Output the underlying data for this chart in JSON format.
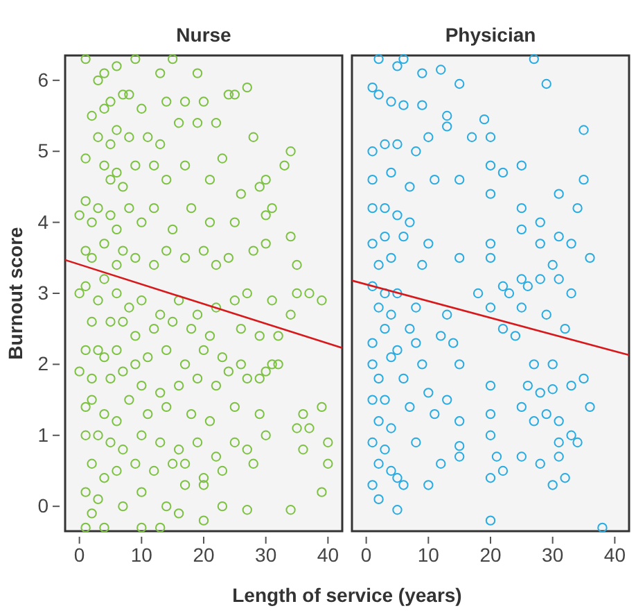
{
  "chart_data": [
    {
      "type": "scatter",
      "title": "Nurse",
      "ylabel": "Burnout score",
      "xlabel": "Length of service (years)",
      "xlim": [
        -2.3,
        42.3
      ],
      "ylim": [
        -0.35,
        6.35
      ],
      "xticks": [
        0,
        10,
        20,
        30,
        40
      ],
      "yticks": [
        0,
        1,
        2,
        3,
        4,
        5,
        6
      ],
      "grid": false,
      "series": [
        {
          "marker": "circle",
          "color": "#7dc142",
          "x": [
            1,
            3,
            4,
            6,
            9,
            13,
            15,
            19,
            2,
            4,
            5,
            7,
            8,
            10,
            14,
            17,
            20,
            24,
            25,
            27,
            3,
            5,
            6,
            8,
            11,
            13,
            16,
            19,
            22,
            28,
            34,
            33,
            1,
            4,
            5,
            6,
            7,
            9,
            12,
            14,
            17,
            21,
            23,
            26,
            29,
            30,
            0,
            1,
            2,
            3,
            5,
            6,
            8,
            10,
            12,
            15,
            18,
            21,
            25,
            30,
            31,
            34,
            1,
            2,
            4,
            6,
            7,
            9,
            12,
            14,
            17,
            20,
            22,
            24,
            28,
            30,
            35,
            0,
            1,
            3,
            4,
            6,
            8,
            10,
            13,
            16,
            19,
            22,
            25,
            27,
            31,
            35,
            37,
            39,
            34,
            2,
            5,
            7,
            9,
            12,
            15,
            18,
            21,
            26,
            29,
            32,
            1,
            3,
            4,
            6,
            9,
            11,
            14,
            17,
            20,
            23,
            26,
            29,
            31,
            0,
            2,
            5,
            7,
            10,
            13,
            16,
            19,
            22,
            24,
            27,
            30,
            32,
            1,
            2,
            4,
            6,
            8,
            11,
            14,
            18,
            21,
            25,
            29,
            36,
            39,
            1,
            3,
            5,
            7,
            10,
            13,
            16,
            19,
            22,
            25,
            27,
            30,
            35,
            37,
            40,
            36,
            2,
            4,
            6,
            9,
            12,
            15,
            17,
            20,
            23,
            28,
            40,
            1,
            3,
            7,
            10,
            14,
            17,
            20,
            23,
            27,
            34,
            39,
            2,
            1,
            4,
            13,
            16,
            20,
            10
          ],
          "values": [
            6.3,
            6.0,
            6.1,
            6.2,
            6.3,
            6.1,
            6.3,
            6.1,
            5.5,
            5.6,
            5.7,
            5.8,
            5.8,
            5.6,
            5.7,
            5.7,
            5.7,
            5.8,
            5.8,
            5.9,
            5.2,
            5.1,
            5.3,
            5.2,
            5.2,
            5.1,
            5.4,
            5.4,
            5.4,
            5.2,
            5.0,
            4.8,
            4.9,
            4.8,
            4.6,
            4.7,
            4.5,
            4.8,
            4.8,
            4.6,
            4.8,
            4.6,
            4.9,
            4.4,
            4.5,
            4.6,
            4.1,
            4.3,
            4.0,
            4.2,
            4.1,
            3.9,
            4.2,
            4.0,
            4.2,
            3.9,
            4.2,
            4.0,
            4.0,
            4.1,
            4.2,
            3.8,
            3.6,
            3.5,
            3.7,
            3.4,
            3.6,
            3.5,
            3.4,
            3.6,
            3.5,
            3.6,
            3.4,
            3.5,
            3.6,
            3.7,
            3.4,
            3.0,
            3.1,
            2.9,
            3.2,
            3.0,
            2.8,
            2.9,
            2.7,
            2.9,
            2.7,
            2.8,
            2.9,
            3.0,
            2.9,
            3.0,
            3.0,
            2.9,
            2.7,
            2.6,
            2.6,
            2.6,
            2.4,
            2.5,
            2.6,
            2.5,
            2.4,
            2.5,
            2.4,
            2.4,
            2.2,
            2.2,
            2.1,
            2.2,
            2.0,
            2.1,
            2.2,
            2.0,
            2.2,
            2.1,
            2.0,
            1.8,
            2.0,
            1.9,
            1.8,
            1.8,
            1.9,
            1.7,
            1.6,
            1.7,
            1.8,
            1.7,
            1.9,
            1.8,
            1.9,
            2.0,
            1.4,
            1.5,
            1.3,
            1.2,
            1.5,
            1.3,
            1.4,
            1.3,
            1.2,
            1.4,
            1.3,
            1.3,
            1.4,
            1.0,
            1.0,
            0.9,
            0.8,
            1.0,
            0.9,
            0.8,
            0.9,
            0.7,
            0.9,
            0.8,
            1.0,
            1.1,
            1.1,
            0.9,
            0.8,
            0.6,
            0.4,
            0.5,
            0.6,
            0.5,
            0.6,
            0.6,
            0.4,
            0.5,
            0.6,
            0.6,
            0.2,
            0.1,
            0.0,
            0.2,
            0.0,
            0.3,
            0.3,
            0.0,
            -0.05,
            -0.05,
            0.2,
            -0.1,
            -0.3,
            -0.3,
            -0.3,
            -0.1,
            -0.2,
            -0.3
          ]
        },
        {
          "type": "line",
          "color": "#d7191c",
          "x": [
            -2.3,
            42.3
          ],
          "values": [
            3.47,
            2.23
          ]
        }
      ]
    },
    {
      "type": "scatter",
      "title": "Physician",
      "xlim": [
        -2.3,
        42.3
      ],
      "ylim": [
        -0.35,
        6.35
      ],
      "xticks": [
        0,
        10,
        20,
        30,
        40
      ],
      "yticks": [
        0,
        1,
        2,
        3,
        4,
        5,
        6
      ],
      "tick_labels": "x",
      "grid": false,
      "series": [
        {
          "marker": "circle",
          "color": "#29abe2",
          "x": [
            2,
            6,
            5,
            9,
            12,
            15,
            27,
            29,
            1,
            2,
            4,
            6,
            9,
            13,
            19,
            13,
            35,
            17,
            20,
            1,
            3,
            5,
            8,
            10,
            20,
            22,
            25,
            1,
            4,
            7,
            11,
            15,
            35,
            20,
            31,
            34,
            1,
            3,
            5,
            7,
            25,
            28,
            25,
            33,
            1,
            3,
            6,
            10,
            20,
            28,
            31,
            36,
            2,
            4,
            9,
            15,
            20,
            30,
            22,
            25,
            26,
            28,
            31,
            1,
            3,
            5,
            18,
            23,
            33,
            8,
            2,
            4,
            20,
            25,
            29,
            3,
            13,
            12,
            7,
            22,
            32,
            1,
            5,
            8,
            14,
            24,
            1,
            4,
            9,
            15,
            27,
            30,
            35,
            20,
            2,
            6,
            10,
            26,
            28,
            30,
            33,
            1,
            3,
            7,
            13,
            20,
            25,
            29,
            36,
            31,
            2,
            4,
            11,
            15,
            27,
            33,
            1,
            3,
            8,
            15,
            20,
            31,
            34,
            2,
            4,
            12,
            15,
            21,
            25,
            28,
            31,
            5,
            20,
            22,
            32,
            1,
            6,
            10,
            30,
            2,
            5,
            20,
            38
          ],
          "values": [
            6.3,
            6.3,
            6.2,
            6.1,
            6.15,
            5.95,
            6.3,
            5.95,
            5.9,
            5.8,
            5.7,
            5.65,
            5.65,
            5.5,
            5.45,
            5.35,
            5.3,
            5.2,
            5.2,
            5.0,
            5.1,
            5.1,
            5.0,
            5.2,
            4.8,
            4.7,
            4.8,
            4.6,
            4.7,
            4.5,
            4.6,
            4.6,
            4.6,
            4.4,
            4.4,
            4.2,
            4.2,
            4.2,
            4.1,
            4.0,
            4.2,
            4.0,
            3.9,
            3.7,
            3.7,
            3.8,
            3.8,
            3.7,
            3.7,
            3.7,
            3.8,
            3.5,
            3.4,
            3.5,
            3.4,
            3.5,
            3.5,
            3.4,
            3.1,
            3.2,
            3.1,
            3.2,
            3.2,
            3.1,
            3.0,
            3.0,
            3.0,
            3.0,
            3.0,
            2.8,
            2.8,
            2.7,
            2.8,
            2.8,
            2.7,
            2.5,
            2.7,
            2.4,
            2.5,
            2.5,
            2.5,
            2.3,
            2.2,
            2.3,
            2.3,
            2.4,
            2.0,
            2.1,
            2.0,
            2.0,
            2.0,
            2.0,
            1.8,
            1.7,
            1.8,
            1.8,
            1.6,
            1.7,
            1.6,
            1.65,
            1.7,
            1.5,
            1.5,
            1.4,
            1.5,
            1.3,
            1.4,
            1.3,
            1.4,
            1.2,
            1.2,
            1.1,
            1.3,
            1.2,
            1.2,
            1.0,
            0.9,
            0.8,
            0.9,
            0.85,
            1.0,
            0.9,
            0.9,
            0.6,
            0.5,
            0.6,
            0.7,
            0.7,
            0.7,
            0.6,
            0.7,
            0.4,
            0.4,
            0.5,
            0.4,
            0.3,
            0.3,
            0.3,
            0.3,
            0.1,
            -0.05,
            -0.2,
            -0.3
          ]
        },
        {
          "type": "line",
          "color": "#d7191c",
          "x": [
            -2.3,
            42.3
          ],
          "values": [
            3.18,
            2.13
          ]
        }
      ]
    }
  ]
}
